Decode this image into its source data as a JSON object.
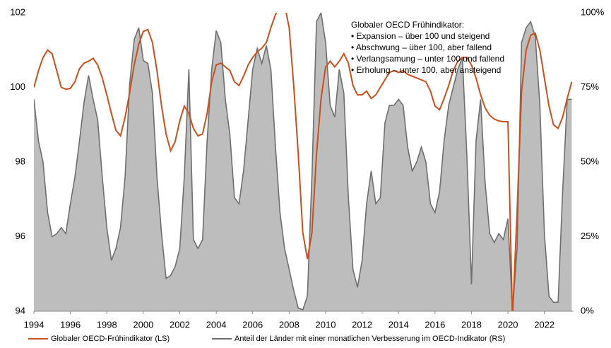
{
  "chart_data": {
    "type": "line",
    "annotation": {
      "title": "Globaler OECD Frühindikator:",
      "items": [
        "• Expansion – über 100 und steigend",
        "• Abschwung – über 100, aber fallend",
        "• Verlangsamung – unter 100 und fallend",
        "• Erholung – unter 100, aber ansteigend"
      ]
    },
    "x": [
      1994,
      1994.25,
      1994.5,
      1994.75,
      1995,
      1995.25,
      1995.5,
      1995.75,
      1996,
      1996.25,
      1996.5,
      1996.75,
      1997,
      1997.25,
      1997.5,
      1997.75,
      1998,
      1998.25,
      1998.5,
      1998.75,
      1999,
      1999.25,
      1999.5,
      1999.75,
      2000,
      2000.25,
      2000.5,
      2000.75,
      2001,
      2001.25,
      2001.5,
      2001.75,
      2002,
      2002.25,
      2002.5,
      2002.75,
      2003,
      2003.25,
      2003.5,
      2003.75,
      2004,
      2004.25,
      2004.5,
      2004.75,
      2005,
      2005.25,
      2005.5,
      2005.75,
      2006,
      2006.25,
      2006.5,
      2006.75,
      2007,
      2007.25,
      2007.5,
      2007.75,
      2008,
      2008.25,
      2008.5,
      2008.75,
      2009,
      2009.25,
      2009.5,
      2009.75,
      2010,
      2010.25,
      2010.5,
      2010.75,
      2011,
      2011.25,
      2011.5,
      2011.75,
      2012,
      2012.25,
      2012.5,
      2012.75,
      2013,
      2013.25,
      2013.5,
      2013.75,
      2014,
      2014.25,
      2014.5,
      2014.75,
      2015,
      2015.25,
      2015.5,
      2015.75,
      2016,
      2016.25,
      2016.5,
      2016.75,
      2017,
      2017.25,
      2017.5,
      2017.75,
      2018,
      2018.25,
      2018.5,
      2018.75,
      2019,
      2019.25,
      2019.5,
      2019.75,
      2020,
      2020.25,
      2020.5,
      2020.75,
      2021,
      2021.25,
      2021.5,
      2021.75,
      2022,
      2022.25,
      2022.5,
      2022.75,
      2023,
      2023.25,
      2023.5
    ],
    "series": [
      {
        "name": "Anteil der Länder mit einer monatlichen Verbesserung im OECD-Indikator (RS)",
        "color": "#6e6e6e",
        "fill": "#bdbdbd",
        "axis": "y2",
        "values": [
          71,
          57,
          50,
          33,
          25,
          26,
          28,
          26,
          36,
          45,
          57,
          70,
          79,
          71,
          64,
          45,
          28,
          17,
          21,
          28,
          45,
          76,
          91,
          95,
          84,
          83,
          73,
          45,
          26,
          11,
          12,
          15,
          21,
          45,
          81,
          24,
          21,
          24,
          57,
          81,
          94,
          90,
          71,
          59,
          38,
          36,
          47,
          64,
          81,
          88,
          83,
          89,
          81,
          55,
          33,
          21,
          14,
          7,
          1,
          0.5,
          5,
          45,
          97,
          100,
          90,
          69,
          65,
          81,
          73,
          38,
          14,
          8,
          17,
          36,
          47,
          36,
          38,
          63,
          69,
          69,
          71,
          69,
          55,
          47,
          50,
          55,
          50,
          36,
          33,
          40,
          57,
          69,
          75,
          81,
          85,
          52,
          9,
          57,
          71,
          43,
          26,
          23,
          26,
          24,
          31,
          0,
          21,
          90,
          95,
          97,
          92,
          69,
          26,
          5,
          3,
          3,
          40,
          71,
          71
        ]
      },
      {
        "name": "Globaler OECD-Frühindikator (LS)",
        "color": "#c8501e",
        "axis": "y",
        "values": [
          100.0,
          100.45,
          100.8,
          101.0,
          100.9,
          100.45,
          100.0,
          99.95,
          99.97,
          100.15,
          100.5,
          100.65,
          100.7,
          100.78,
          100.6,
          100.25,
          99.8,
          99.3,
          98.85,
          98.7,
          99.2,
          99.85,
          100.6,
          101.15,
          101.5,
          101.55,
          101.2,
          100.45,
          99.5,
          98.75,
          98.3,
          98.55,
          99.1,
          99.5,
          99.3,
          98.9,
          98.7,
          98.75,
          99.3,
          100.15,
          100.6,
          100.65,
          100.55,
          100.45,
          100.15,
          100.05,
          100.3,
          100.6,
          100.8,
          100.95,
          101.05,
          101.2,
          101.6,
          101.95,
          102.2,
          102.2,
          101.6,
          100.05,
          98.2,
          96.1,
          95.4,
          96.1,
          98.2,
          99.7,
          100.55,
          100.7,
          100.55,
          100.7,
          100.9,
          100.65,
          100.05,
          99.8,
          99.8,
          99.9,
          99.7,
          99.8,
          100.0,
          100.2,
          100.4,
          100.45,
          100.4,
          100.45,
          100.35,
          100.3,
          100.25,
          100.2,
          100.15,
          99.9,
          99.5,
          99.4,
          99.7,
          100.05,
          100.45,
          100.7,
          100.8,
          100.8,
          100.6,
          100.25,
          99.8,
          99.45,
          99.25,
          99.15,
          99.1,
          99.08,
          99.08,
          93.8,
          96.65,
          99.9,
          101.0,
          101.4,
          101.45,
          101.0,
          100.25,
          99.5,
          99.0,
          98.9,
          99.2,
          99.7,
          100.15
        ]
      }
    ],
    "xlim": [
      1994,
      2023.6
    ],
    "xticks": [
      1994,
      1996,
      1998,
      2000,
      2002,
      2004,
      2006,
      2008,
      2010,
      2012,
      2014,
      2016,
      2018,
      2020,
      2022
    ],
    "ylim": [
      94,
      102
    ],
    "yticks": [
      94,
      96,
      98,
      100,
      102
    ],
    "y2lim": [
      0,
      100
    ],
    "y2ticks": [
      {
        "value": 0,
        "label": "0%"
      },
      {
        "value": 25,
        "label": "25%"
      },
      {
        "value": 50,
        "label": "50%"
      },
      {
        "value": 75,
        "label": "75%"
      },
      {
        "value": 100,
        "label": "100%"
      }
    ]
  }
}
